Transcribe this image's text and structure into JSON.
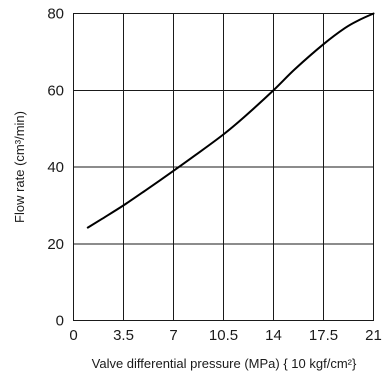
{
  "chart_data": {
    "type": "line",
    "xlabel": "Valve differential pressure (MPa) { 10 kgf/cm²}",
    "ylabel": "Flow rate (cm³/min)",
    "xlim": [
      0,
      21
    ],
    "ylim": [
      0,
      80
    ],
    "x_ticks": [
      {
        "value": 0,
        "label": "0"
      },
      {
        "value": 3.5,
        "label": "3.5"
      },
      {
        "value": 7,
        "label": "7"
      },
      {
        "value": 10.5,
        "label": "10.5"
      },
      {
        "value": 14,
        "label": "14"
      },
      {
        "value": 17.5,
        "label": "17.5"
      },
      {
        "value": 21,
        "label": "21"
      }
    ],
    "y_ticks": [
      {
        "value": 0,
        "label": "0"
      },
      {
        "value": 20,
        "label": "20"
      },
      {
        "value": 40,
        "label": "40"
      },
      {
        "value": 60,
        "label": "60"
      },
      {
        "value": 80,
        "label": "80"
      }
    ],
    "grid": true,
    "series": [
      {
        "color": "#000000",
        "x": [
          1,
          2,
          3.5,
          5,
          7,
          8.5,
          10.5,
          12,
          14,
          15.5,
          17.5,
          19,
          20,
          21
        ],
        "y": [
          24.2,
          26.5,
          30,
          33.8,
          39,
          43,
          48.5,
          53.2,
          60,
          65.5,
          72,
          76.2,
          78.3,
          80
        ]
      }
    ]
  }
}
